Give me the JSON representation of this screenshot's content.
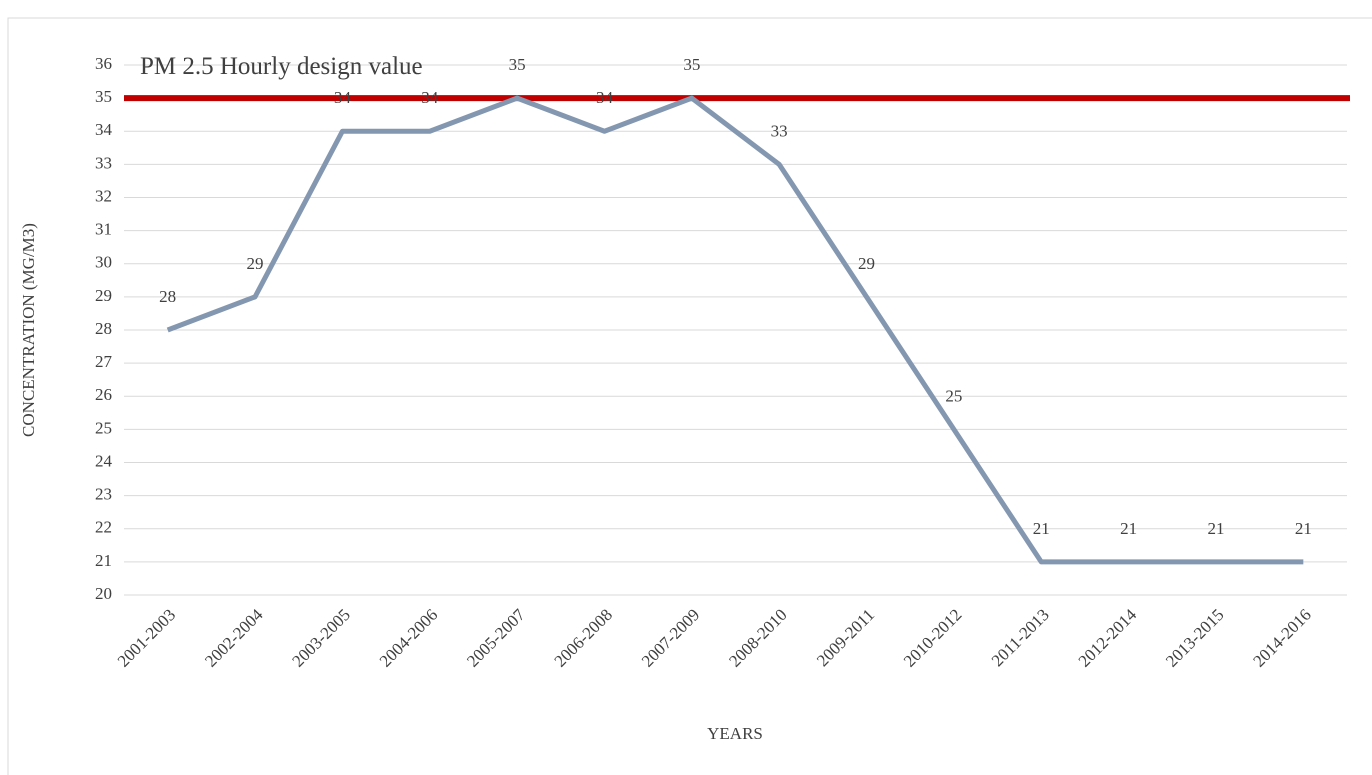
{
  "chart_data": {
    "type": "line",
    "x_label": "YEARS",
    "y_label": "CONCENTRATION (MG/M3)",
    "categories": [
      "2001-2003",
      "2002-2004",
      "2003-2005",
      "2004-2006",
      "2005-2007",
      "2006-2008",
      "2007-2009",
      "2008-2010",
      "2009-2011",
      "2010-2012",
      "2011-2013",
      "2012-2014",
      "2013-2015",
      "2014-2016"
    ],
    "series": [
      {
        "color": "#8497b0",
        "values": [
          28,
          29,
          34,
          34,
          35,
          34,
          35,
          33,
          29,
          25,
          21,
          21,
          21,
          21
        ]
      }
    ],
    "reference_line": {
      "value": 35,
      "label": "PM 2.5 Hourly design value",
      "color": "#c00000"
    },
    "ylim": [
      20,
      36
    ],
    "yticks": [
      20,
      21,
      22,
      23,
      24,
      25,
      26,
      27,
      28,
      29,
      30,
      31,
      32,
      33,
      34,
      35,
      36
    ],
    "grid": true
  }
}
